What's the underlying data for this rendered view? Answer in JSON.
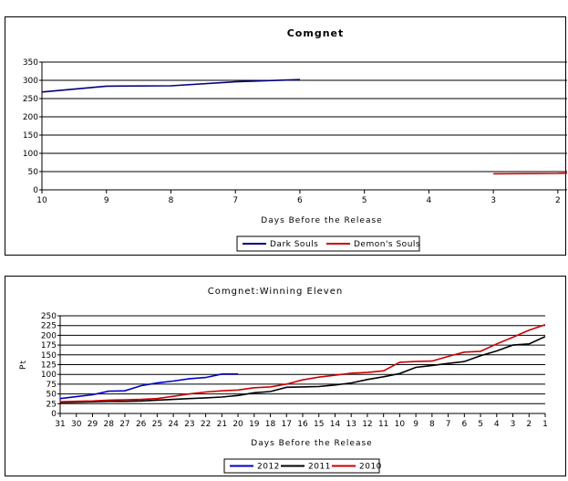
{
  "chart_data": [
    {
      "type": "line",
      "title": "Comgnet",
      "xlabel": "Days Before the Release",
      "ylabel": "",
      "x": [
        10,
        9,
        8,
        7,
        6,
        5,
        4,
        3,
        2
      ],
      "x_tick_labels": [
        "10",
        "9",
        "8",
        "7",
        "6",
        "5",
        "4",
        "3",
        "2"
      ],
      "y_tick_labels": [
        "0",
        "50",
        "100",
        "150",
        "200",
        "250",
        "300",
        "350"
      ],
      "xlim": [
        10,
        1.8
      ],
      "ylim": [
        0,
        350
      ],
      "grid": true,
      "legend": "bottom",
      "series": [
        {
          "name": "Dark Souls",
          "color": "#000080",
          "points": [
            [
              10,
              268
            ],
            [
              9,
              284
            ],
            [
              8,
              285
            ],
            [
              7,
              296
            ],
            [
              6,
              302
            ]
          ]
        },
        {
          "name": "Demon's Souls",
          "color": "#cc0000",
          "points": [
            [
              3,
              44
            ],
            [
              2,
              45
            ],
            [
              1.8,
              46
            ]
          ]
        }
      ]
    },
    {
      "type": "line",
      "title": "Comgnet:Winning Eleven",
      "xlabel": "Days Before the Release",
      "ylabel": "Pt",
      "x": [
        31,
        30,
        29,
        28,
        27,
        26,
        25,
        24,
        23,
        22,
        21,
        20,
        19,
        18,
        17,
        16,
        15,
        14,
        13,
        12,
        11,
        10,
        9,
        8,
        7,
        6,
        5,
        4,
        3,
        2,
        1
      ],
      "x_tick_labels": [
        "31",
        "30",
        "29",
        "28",
        "27",
        "26",
        "25",
        "24",
        "23",
        "22",
        "21",
        "20",
        "19",
        "18",
        "17",
        "16",
        "15",
        "14",
        "13",
        "12",
        "11",
        "10",
        "9",
        "8",
        "7",
        "6",
        "5",
        "4",
        "3",
        "2",
        "1"
      ],
      "y_tick_labels": [
        "0",
        "25",
        "50",
        "75",
        "100",
        "125",
        "150",
        "175",
        "200",
        "225",
        "250"
      ],
      "xlim": [
        31,
        1
      ],
      "ylim": [
        0,
        250
      ],
      "grid": true,
      "legend": "bottom",
      "series": [
        {
          "name": "2012",
          "color": "#0000cc",
          "points": [
            [
              31,
              38
            ],
            [
              30,
              43
            ],
            [
              29,
              48
            ],
            [
              28,
              57
            ],
            [
              27,
              58
            ],
            [
              26,
              71
            ],
            [
              25,
              78
            ],
            [
              24,
              83
            ],
            [
              23,
              89
            ],
            [
              22,
              92
            ],
            [
              21,
              101
            ],
            [
              20,
              101
            ]
          ]
        },
        {
          "name": "2011",
          "color": "#000000",
          "points": [
            [
              31,
              28
            ],
            [
              30,
              29
            ],
            [
              29,
              30
            ],
            [
              28,
              31
            ],
            [
              27,
              31
            ],
            [
              26,
              32
            ],
            [
              25,
              34
            ],
            [
              24,
              36
            ],
            [
              23,
              38
            ],
            [
              22,
              40
            ],
            [
              21,
              42
            ],
            [
              20,
              46
            ],
            [
              19,
              53
            ],
            [
              18,
              56
            ],
            [
              17,
              67
            ],
            [
              16,
              68
            ],
            [
              15,
              69
            ],
            [
              14,
              73
            ],
            [
              13,
              78
            ],
            [
              12,
              87
            ],
            [
              11,
              94
            ],
            [
              10,
              102
            ],
            [
              9,
              118
            ],
            [
              8,
              123
            ],
            [
              7,
              128
            ],
            [
              6,
              133
            ],
            [
              5,
              148
            ],
            [
              4,
              160
            ],
            [
              3,
              175
            ],
            [
              2,
              178
            ],
            [
              1,
              197
            ]
          ]
        },
        {
          "name": "2010",
          "color": "#cc0000",
          "points": [
            [
              31,
              30
            ],
            [
              30,
              31
            ],
            [
              29,
              32
            ],
            [
              28,
              34
            ],
            [
              27,
              35
            ],
            [
              26,
              36
            ],
            [
              25,
              38
            ],
            [
              24,
              44
            ],
            [
              23,
              50
            ],
            [
              22,
              55
            ],
            [
              21,
              58
            ],
            [
              20,
              60
            ],
            [
              19,
              66
            ],
            [
              18,
              68
            ],
            [
              17,
              75
            ],
            [
              16,
              86
            ],
            [
              15,
              93
            ],
            [
              14,
              98
            ],
            [
              13,
              103
            ],
            [
              12,
              105
            ],
            [
              11,
              109
            ],
            [
              10,
              131
            ],
            [
              9,
              133
            ],
            [
              8,
              134
            ],
            [
              7,
              146
            ],
            [
              6,
              157
            ],
            [
              5,
              159
            ],
            [
              4,
              178
            ],
            [
              3,
              195
            ],
            [
              2,
              213
            ],
            [
              1,
              227
            ]
          ]
        }
      ]
    }
  ]
}
